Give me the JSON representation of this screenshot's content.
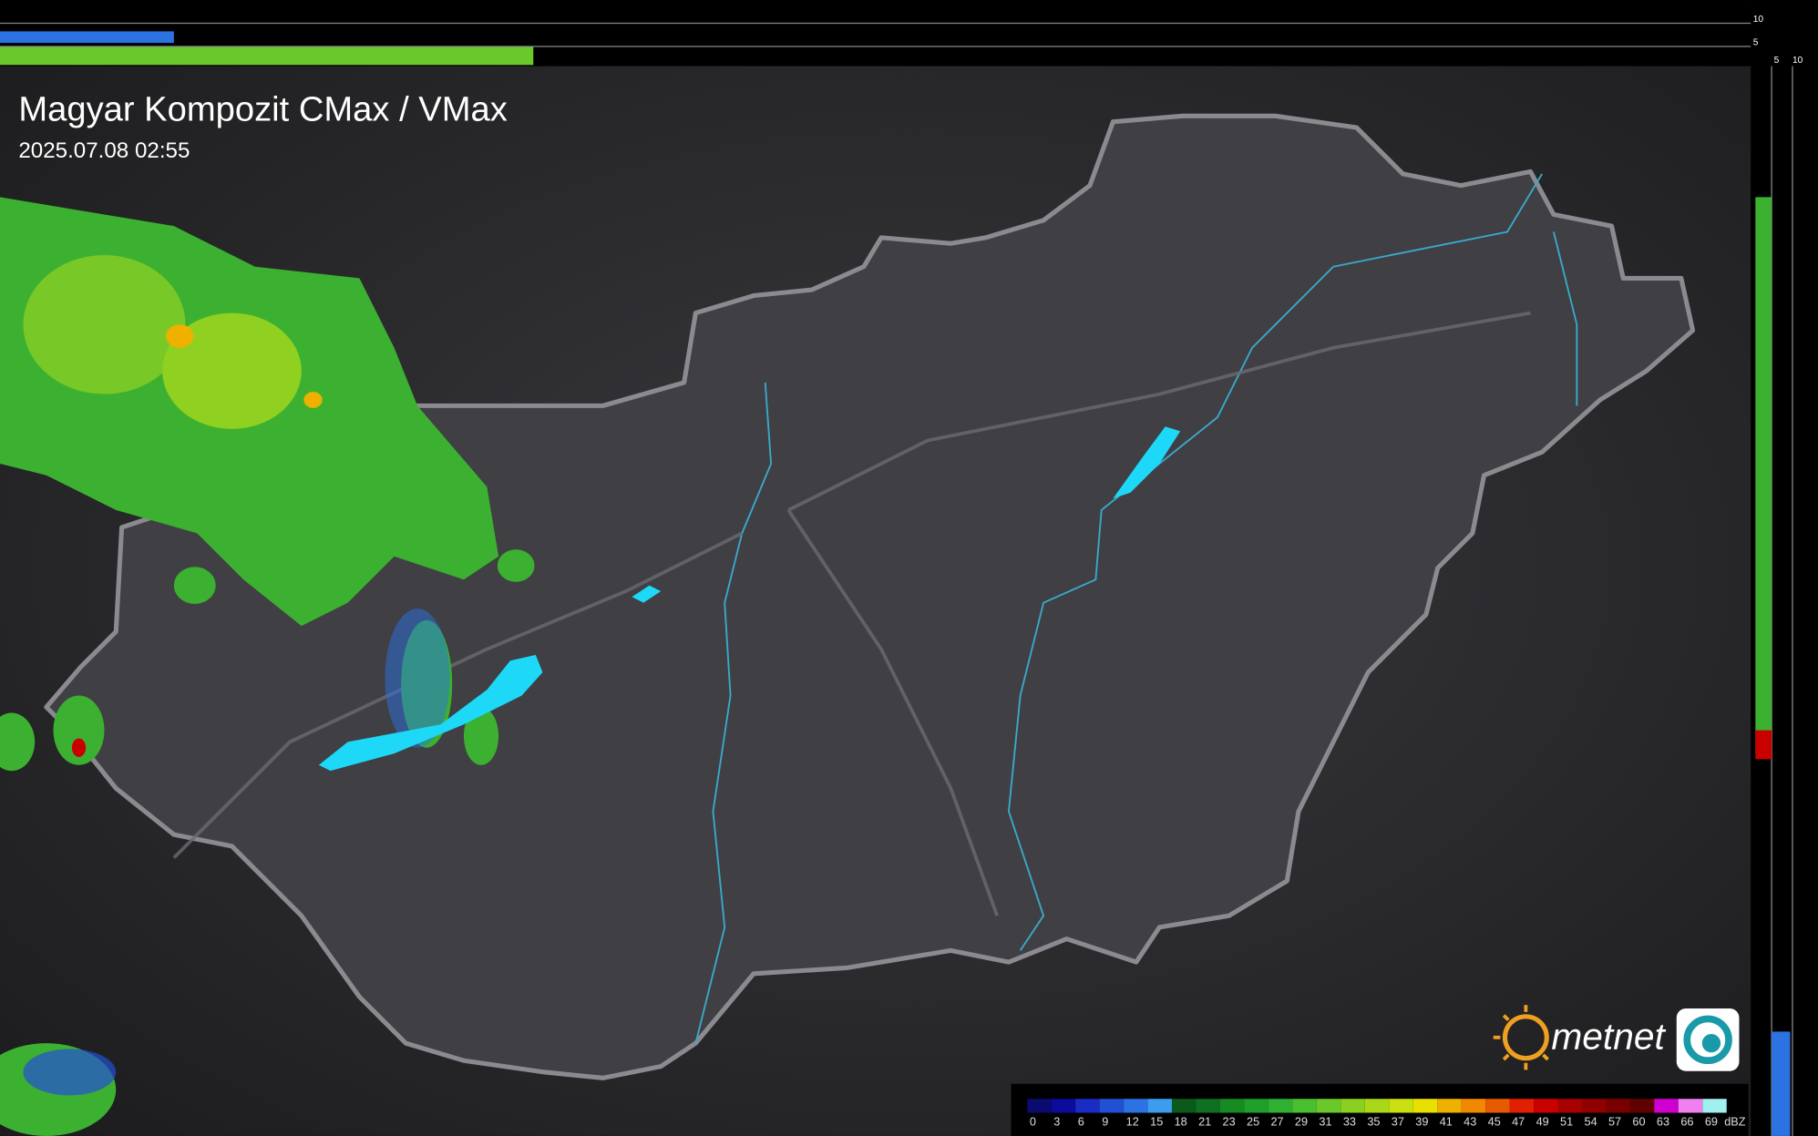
{
  "header": {
    "title": "Magyar Kompozit CMax / VMax",
    "timestamp": "2025.07.08 02:55"
  },
  "side_axis": {
    "top": [
      "10",
      "5"
    ],
    "right": [
      "5",
      "10"
    ]
  },
  "logo": {
    "text": "metnet"
  },
  "legend": {
    "unit": "dBZ",
    "entries": [
      {
        "label": 0,
        "color": "#0a0a70"
      },
      {
        "label": 3,
        "color": "#0c0c9c"
      },
      {
        "label": 6,
        "color": "#1a2cc4"
      },
      {
        "label": 9,
        "color": "#2250d4"
      },
      {
        "label": 12,
        "color": "#2c72e2"
      },
      {
        "label": 15,
        "color": "#3c9cee"
      },
      {
        "label": 18,
        "color": "#0a5a1c"
      },
      {
        "label": 21,
        "color": "#107022"
      },
      {
        "label": 23,
        "color": "#178a24"
      },
      {
        "label": 25,
        "color": "#1fa02a"
      },
      {
        "label": 27,
        "color": "#30b030"
      },
      {
        "label": 29,
        "color": "#4ac030"
      },
      {
        "label": 31,
        "color": "#6ac82a"
      },
      {
        "label": 33,
        "color": "#8ad020"
      },
      {
        "label": 35,
        "color": "#aad818"
      },
      {
        "label": 37,
        "color": "#cae010"
      },
      {
        "label": 39,
        "color": "#e8e000"
      },
      {
        "label": 41,
        "color": "#f0b000"
      },
      {
        "label": 43,
        "color": "#f08800"
      },
      {
        "label": 45,
        "color": "#e85a00"
      },
      {
        "label": 47,
        "color": "#e02000"
      },
      {
        "label": 49,
        "color": "#c80000"
      },
      {
        "label": 51,
        "color": "#a80000"
      },
      {
        "label": 54,
        "color": "#900000"
      },
      {
        "label": 57,
        "color": "#780000"
      },
      {
        "label": 60,
        "color": "#600000"
      },
      {
        "label": 63,
        "color": "#d000d0"
      },
      {
        "label": 66,
        "color": "#f080f0"
      },
      {
        "label": 69,
        "color": "#a0f0f0"
      }
    ]
  }
}
